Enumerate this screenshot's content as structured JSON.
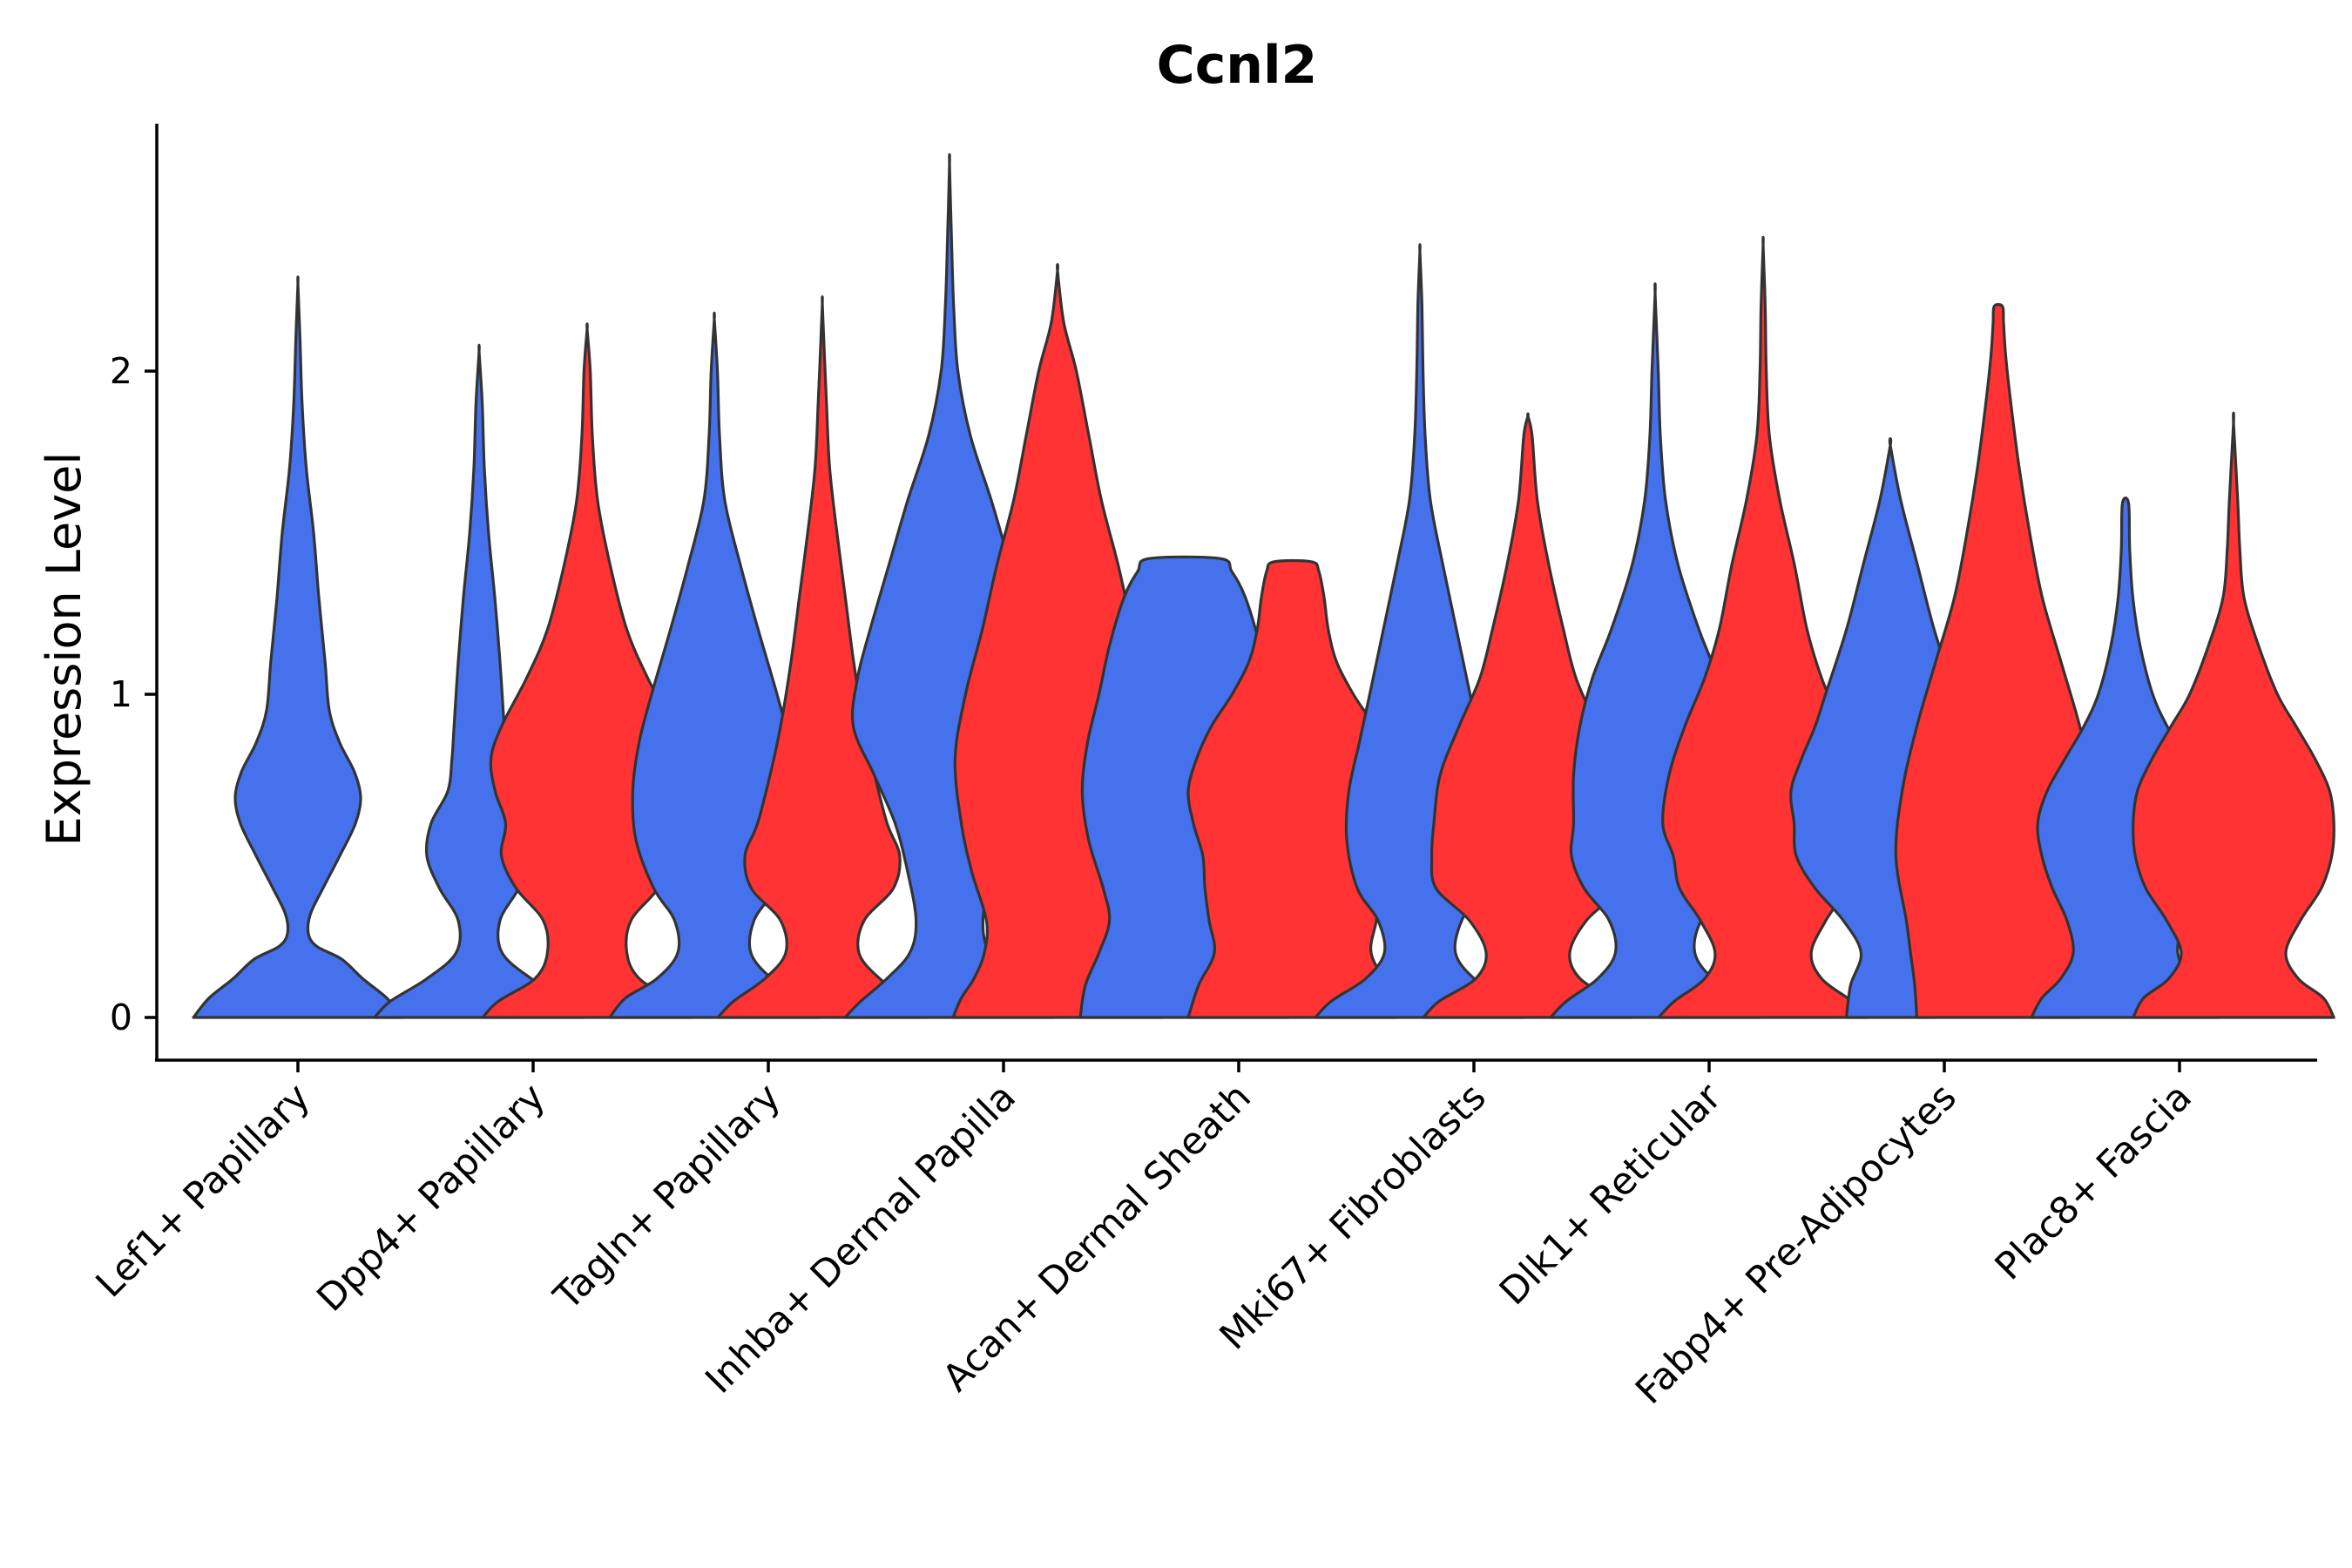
{
  "chart_data": {
    "type": "violin",
    "title": "Ccnl2",
    "xlabel": "",
    "ylabel": "Expression Level",
    "yticks": [
      0,
      1,
      2
    ],
    "ylim": [
      -0.13,
      2.75
    ],
    "grid": false,
    "legend": "none",
    "categories": [
      "Lef1+ Papillary",
      "Dpp4+ Papillary",
      "Tagln+ Papillary",
      "Inhba+ Dermal Papilla",
      "Acan+ Dermal Sheath",
      "Mki67+ Fibroblasts",
      "Dlk1+ Reticular",
      "Fabp4+ Pre-Adipocytes",
      "Plac8+ Fascia"
    ],
    "series_colors": {
      "A": "#4571EC",
      "B": "#FF3333"
    },
    "violins": [
      {
        "category": "Lef1+ Papillary",
        "group": "A",
        "max": 2.27,
        "profile": [
          [
            0,
            1.0
          ],
          [
            0.06,
            0.85
          ],
          [
            0.12,
            0.62
          ],
          [
            0.18,
            0.42
          ],
          [
            0.22,
            0.18
          ],
          [
            0.26,
            0.1
          ],
          [
            0.32,
            0.12
          ],
          [
            0.4,
            0.24
          ],
          [
            0.5,
            0.4
          ],
          [
            0.6,
            0.55
          ],
          [
            0.68,
            0.6
          ],
          [
            0.76,
            0.54
          ],
          [
            0.85,
            0.4
          ],
          [
            0.95,
            0.3
          ],
          [
            1.1,
            0.26
          ],
          [
            1.3,
            0.2
          ],
          [
            1.5,
            0.15
          ],
          [
            1.7,
            0.08
          ],
          [
            1.9,
            0.04
          ],
          [
            2.1,
            0.02
          ],
          [
            2.27,
            0.0
          ]
        ]
      },
      {
        "category": "Dpp4+ Papillary",
        "group": "A",
        "max": 2.06,
        "profile": [
          [
            0,
            1.0
          ],
          [
            0.05,
            0.85
          ],
          [
            0.12,
            0.5
          ],
          [
            0.2,
            0.22
          ],
          [
            0.3,
            0.2
          ],
          [
            0.4,
            0.38
          ],
          [
            0.5,
            0.5
          ],
          [
            0.6,
            0.46
          ],
          [
            0.7,
            0.3
          ],
          [
            0.8,
            0.26
          ],
          [
            0.9,
            0.24
          ],
          [
            1.1,
            0.2
          ],
          [
            1.3,
            0.15
          ],
          [
            1.5,
            0.09
          ],
          [
            1.7,
            0.05
          ],
          [
            1.9,
            0.03
          ],
          [
            2.06,
            0.0
          ]
        ]
      },
      {
        "category": "Dpp4+ Papillary",
        "group": "B",
        "max": 2.13,
        "profile": [
          [
            0,
            1.0
          ],
          [
            0.05,
            0.85
          ],
          [
            0.12,
            0.5
          ],
          [
            0.2,
            0.38
          ],
          [
            0.3,
            0.42
          ],
          [
            0.4,
            0.68
          ],
          [
            0.5,
            0.82
          ],
          [
            0.6,
            0.78
          ],
          [
            0.7,
            0.88
          ],
          [
            0.8,
            0.92
          ],
          [
            0.9,
            0.82
          ],
          [
            1.05,
            0.58
          ],
          [
            1.2,
            0.38
          ],
          [
            1.4,
            0.22
          ],
          [
            1.6,
            0.1
          ],
          [
            1.8,
            0.05
          ],
          [
            2.0,
            0.03
          ],
          [
            2.13,
            0.0
          ]
        ]
      },
      {
        "category": "Tagln+ Papillary",
        "group": "A",
        "max": 2.16,
        "profile": [
          [
            0,
            1.0
          ],
          [
            0.06,
            0.85
          ],
          [
            0.12,
            0.55
          ],
          [
            0.2,
            0.35
          ],
          [
            0.3,
            0.38
          ],
          [
            0.4,
            0.58
          ],
          [
            0.55,
            0.75
          ],
          [
            0.7,
            0.78
          ],
          [
            0.85,
            0.72
          ],
          [
            1.0,
            0.6
          ],
          [
            1.2,
            0.42
          ],
          [
            1.4,
            0.25
          ],
          [
            1.6,
            0.1
          ],
          [
            1.8,
            0.05
          ],
          [
            2.0,
            0.03
          ],
          [
            2.16,
            0.0
          ]
        ]
      },
      {
        "category": "Tagln+ Papillary",
        "group": "B",
        "max": 2.21,
        "profile": [
          [
            0,
            1.0
          ],
          [
            0.05,
            0.85
          ],
          [
            0.12,
            0.55
          ],
          [
            0.2,
            0.35
          ],
          [
            0.3,
            0.4
          ],
          [
            0.4,
            0.68
          ],
          [
            0.5,
            0.74
          ],
          [
            0.6,
            0.62
          ],
          [
            0.75,
            0.5
          ],
          [
            0.9,
            0.4
          ],
          [
            1.1,
            0.3
          ],
          [
            1.3,
            0.22
          ],
          [
            1.5,
            0.14
          ],
          [
            1.7,
            0.07
          ],
          [
            1.9,
            0.04
          ],
          [
            2.05,
            0.02
          ],
          [
            2.21,
            0.0
          ]
        ]
      },
      {
        "category": "Inhba+ Dermal Papilla",
        "group": "A",
        "max": 2.64,
        "profile": [
          [
            0,
            1.0
          ],
          [
            0.05,
            0.85
          ],
          [
            0.12,
            0.6
          ],
          [
            0.2,
            0.38
          ],
          [
            0.3,
            0.32
          ],
          [
            0.45,
            0.4
          ],
          [
            0.6,
            0.52
          ],
          [
            0.75,
            0.72
          ],
          [
            0.9,
            0.92
          ],
          [
            1.05,
            0.88
          ],
          [
            1.2,
            0.76
          ],
          [
            1.4,
            0.58
          ],
          [
            1.6,
            0.4
          ],
          [
            1.8,
            0.2
          ],
          [
            2.0,
            0.08
          ],
          [
            2.2,
            0.04
          ],
          [
            2.4,
            0.02
          ],
          [
            2.64,
            0.0
          ]
        ]
      },
      {
        "category": "Inhba+ Dermal Papilla",
        "group": "B",
        "max": 2.31,
        "profile": [
          [
            0,
            1.0
          ],
          [
            0.06,
            0.92
          ],
          [
            0.12,
            0.8
          ],
          [
            0.2,
            0.7
          ],
          [
            0.3,
            0.68
          ],
          [
            0.45,
            0.82
          ],
          [
            0.6,
            0.92
          ],
          [
            0.8,
            0.98
          ],
          [
            1.0,
            0.88
          ],
          [
            1.2,
            0.72
          ],
          [
            1.4,
            0.58
          ],
          [
            1.6,
            0.42
          ],
          [
            1.8,
            0.3
          ],
          [
            2.0,
            0.18
          ],
          [
            2.15,
            0.06
          ],
          [
            2.31,
            0.0
          ]
        ]
      },
      {
        "category": "Acan+ Dermal Sheath",
        "group": "A",
        "max": 1.42,
        "profile": [
          [
            0,
            1.0
          ],
          [
            0.1,
            0.95
          ],
          [
            0.2,
            0.82
          ],
          [
            0.3,
            0.72
          ],
          [
            0.4,
            0.78
          ],
          [
            0.55,
            0.92
          ],
          [
            0.7,
            0.98
          ],
          [
            0.85,
            0.93
          ],
          [
            1.0,
            0.82
          ],
          [
            1.15,
            0.72
          ],
          [
            1.3,
            0.58
          ],
          [
            1.38,
            0.45
          ],
          [
            1.42,
            0.34
          ]
        ]
      },
      {
        "category": "Acan+ Dermal Sheath",
        "group": "B",
        "max": 1.41,
        "profile": [
          [
            0,
            1.0
          ],
          [
            0.1,
            0.9
          ],
          [
            0.2,
            0.75
          ],
          [
            0.3,
            0.8
          ],
          [
            0.4,
            0.84
          ],
          [
            0.5,
            0.86
          ],
          [
            0.6,
            0.95
          ],
          [
            0.7,
            1.0
          ],
          [
            0.8,
            0.92
          ],
          [
            0.9,
            0.78
          ],
          [
            1.0,
            0.58
          ],
          [
            1.1,
            0.42
          ],
          [
            1.2,
            0.34
          ],
          [
            1.3,
            0.3
          ],
          [
            1.38,
            0.25
          ],
          [
            1.41,
            0.18
          ]
        ]
      },
      {
        "category": "Mki67+ Fibroblasts",
        "group": "A",
        "max": 2.37,
        "profile": [
          [
            0,
            1.0
          ],
          [
            0.05,
            0.85
          ],
          [
            0.12,
            0.52
          ],
          [
            0.2,
            0.34
          ],
          [
            0.3,
            0.4
          ],
          [
            0.4,
            0.6
          ],
          [
            0.55,
            0.7
          ],
          [
            0.7,
            0.68
          ],
          [
            0.85,
            0.58
          ],
          [
            1.0,
            0.48
          ],
          [
            1.2,
            0.35
          ],
          [
            1.4,
            0.22
          ],
          [
            1.6,
            0.1
          ],
          [
            1.8,
            0.05
          ],
          [
            2.0,
            0.03
          ],
          [
            2.2,
            0.02
          ],
          [
            2.37,
            0.0
          ]
        ]
      },
      {
        "category": "Mki67+ Fibroblasts",
        "group": "B",
        "max": 1.86,
        "profile": [
          [
            0,
            1.0
          ],
          [
            0.05,
            0.85
          ],
          [
            0.12,
            0.5
          ],
          [
            0.2,
            0.4
          ],
          [
            0.3,
            0.56
          ],
          [
            0.4,
            0.88
          ],
          [
            0.5,
            0.92
          ],
          [
            0.6,
            0.9
          ],
          [
            0.75,
            0.84
          ],
          [
            0.9,
            0.66
          ],
          [
            1.05,
            0.46
          ],
          [
            1.2,
            0.34
          ],
          [
            1.4,
            0.2
          ],
          [
            1.6,
            0.09
          ],
          [
            1.8,
            0.04
          ],
          [
            1.86,
            0.0
          ]
        ]
      },
      {
        "category": "Dlk1+ Reticular",
        "group": "A",
        "max": 2.24,
        "profile": [
          [
            0,
            1.0
          ],
          [
            0.05,
            0.85
          ],
          [
            0.12,
            0.55
          ],
          [
            0.2,
            0.38
          ],
          [
            0.3,
            0.44
          ],
          [
            0.4,
            0.68
          ],
          [
            0.5,
            0.8
          ],
          [
            0.6,
            0.78
          ],
          [
            0.75,
            0.78
          ],
          [
            0.9,
            0.72
          ],
          [
            1.05,
            0.6
          ],
          [
            1.2,
            0.42
          ],
          [
            1.4,
            0.22
          ],
          [
            1.6,
            0.1
          ],
          [
            1.8,
            0.05
          ],
          [
            2.0,
            0.03
          ],
          [
            2.24,
            0.0
          ]
        ]
      },
      {
        "category": "Dlk1+ Reticular",
        "group": "B",
        "max": 2.39,
        "profile": [
          [
            0,
            1.0
          ],
          [
            0.05,
            0.85
          ],
          [
            0.12,
            0.56
          ],
          [
            0.2,
            0.46
          ],
          [
            0.3,
            0.6
          ],
          [
            0.4,
            0.8
          ],
          [
            0.5,
            0.86
          ],
          [
            0.6,
            0.96
          ],
          [
            0.75,
            0.9
          ],
          [
            0.9,
            0.75
          ],
          [
            1.05,
            0.56
          ],
          [
            1.2,
            0.42
          ],
          [
            1.4,
            0.3
          ],
          [
            1.6,
            0.16
          ],
          [
            1.8,
            0.06
          ],
          [
            2.0,
            0.03
          ],
          [
            2.2,
            0.02
          ],
          [
            2.39,
            0.0
          ]
        ]
      },
      {
        "category": "Fabp4+ Pre-Adipocytes",
        "group": "A",
        "max": 1.77,
        "profile": [
          [
            0,
            0.42
          ],
          [
            0.1,
            0.38
          ],
          [
            0.2,
            0.28
          ],
          [
            0.3,
            0.45
          ],
          [
            0.4,
            0.72
          ],
          [
            0.5,
            0.9
          ],
          [
            0.6,
            0.92
          ],
          [
            0.7,
            0.95
          ],
          [
            0.8,
            0.85
          ],
          [
            0.9,
            0.72
          ],
          [
            1.0,
            0.62
          ],
          [
            1.2,
            0.42
          ],
          [
            1.4,
            0.26
          ],
          [
            1.6,
            0.1
          ],
          [
            1.77,
            0.0
          ]
        ]
      },
      {
        "category": "Fabp4+ Pre-Adipocytes",
        "group": "B",
        "max": 2.2,
        "profile": [
          [
            0,
            0.78
          ],
          [
            0.1,
            0.8
          ],
          [
            0.2,
            0.84
          ],
          [
            0.3,
            0.88
          ],
          [
            0.5,
            0.98
          ],
          [
            0.7,
            0.92
          ],
          [
            0.9,
            0.78
          ],
          [
            1.1,
            0.6
          ],
          [
            1.3,
            0.42
          ],
          [
            1.5,
            0.3
          ],
          [
            1.7,
            0.2
          ],
          [
            1.9,
            0.12
          ],
          [
            2.05,
            0.07
          ],
          [
            2.15,
            0.05
          ],
          [
            2.2,
            0.04
          ]
        ]
      },
      {
        "category": "Plac8+ Fascia",
        "group": "A",
        "max": 1.59,
        "profile": [
          [
            0,
            0.9
          ],
          [
            0.06,
            0.8
          ],
          [
            0.12,
            0.62
          ],
          [
            0.2,
            0.5
          ],
          [
            0.3,
            0.56
          ],
          [
            0.4,
            0.7
          ],
          [
            0.5,
            0.8
          ],
          [
            0.6,
            0.84
          ],
          [
            0.7,
            0.75
          ],
          [
            0.8,
            0.58
          ],
          [
            0.9,
            0.4
          ],
          [
            1.0,
            0.26
          ],
          [
            1.15,
            0.14
          ],
          [
            1.3,
            0.07
          ],
          [
            1.45,
            0.04
          ],
          [
            1.59,
            0.03
          ]
        ]
      },
      {
        "category": "Plac8+ Fascia",
        "group": "B",
        "max": 1.84,
        "profile": [
          [
            0,
            0.96
          ],
          [
            0.06,
            0.86
          ],
          [
            0.12,
            0.62
          ],
          [
            0.2,
            0.5
          ],
          [
            0.3,
            0.64
          ],
          [
            0.4,
            0.84
          ],
          [
            0.5,
            0.94
          ],
          [
            0.6,
            0.96
          ],
          [
            0.7,
            0.92
          ],
          [
            0.8,
            0.78
          ],
          [
            0.9,
            0.6
          ],
          [
            1.0,
            0.42
          ],
          [
            1.15,
            0.24
          ],
          [
            1.3,
            0.1
          ],
          [
            1.45,
            0.06
          ],
          [
            1.6,
            0.04
          ],
          [
            1.84,
            0.0
          ]
        ]
      }
    ]
  }
}
